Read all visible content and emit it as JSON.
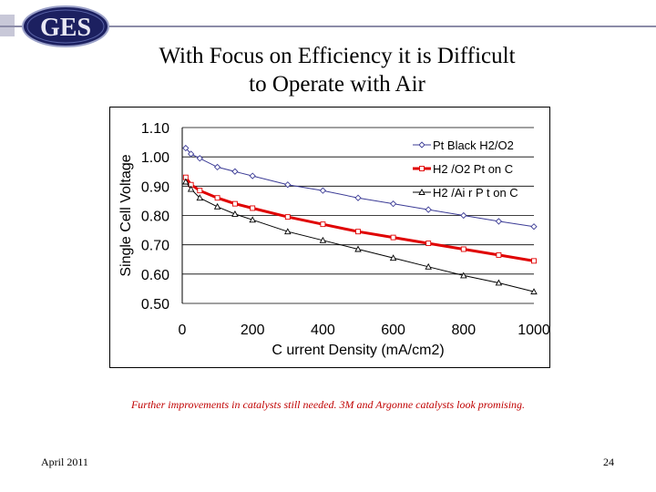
{
  "logo_text": "GES",
  "slide": {
    "title_line1": "With Focus on Efficiency it is Difficult",
    "title_line2": "to Operate with Air",
    "note": "Further improvements in catalysts still needed.  3M and Argonne catalysts look promising.",
    "date": "April 2011",
    "page": "24"
  },
  "colors": {
    "black": "#000000",
    "red": "#e00000",
    "navy": "#3c3c96",
    "note": "#c00000"
  },
  "chart_data": {
    "type": "line",
    "xlabel": "C urrent Density (mA/cm2)",
    "ylabel": "Single Cell Voltage",
    "xlim": [
      0,
      1000
    ],
    "ylim": [
      0.5,
      1.1
    ],
    "xticks": [
      0,
      200,
      400,
      600,
      800,
      1000
    ],
    "xtick_labels": [
      "0",
      "200",
      "400",
      "600",
      "800",
      "1000"
    ],
    "yticks": [
      0.5,
      0.6,
      0.7,
      0.8,
      0.9,
      1.0,
      1.1
    ],
    "ytick_labels": [
      "0.50",
      "0.60",
      "0.70",
      "0.80",
      "0.90",
      "1.00",
      "1.10"
    ],
    "grid": "horizontal",
    "legend_position": "top-right",
    "series": [
      {
        "name": "Pt  Black H2/O2",
        "color": "#3c3c96",
        "marker": "diamond",
        "x": [
          10,
          25,
          50,
          100,
          150,
          200,
          300,
          400,
          500,
          600,
          700,
          800,
          900,
          1000
        ],
        "y": [
          1.03,
          1.01,
          0.995,
          0.965,
          0.95,
          0.935,
          0.905,
          0.885,
          0.86,
          0.84,
          0.82,
          0.8,
          0.78,
          0.762
        ]
      },
      {
        "name": "H2 /O2  Pt  on C",
        "color": "#e00000",
        "marker": "square",
        "x": [
          10,
          25,
          50,
          100,
          150,
          200,
          300,
          400,
          500,
          600,
          700,
          800,
          900,
          1000
        ],
        "y": [
          0.93,
          0.905,
          0.885,
          0.86,
          0.84,
          0.825,
          0.795,
          0.77,
          0.745,
          0.725,
          0.705,
          0.685,
          0.665,
          0.645
        ]
      },
      {
        "name": "H2 /Ai r P t on C",
        "color": "#000000",
        "marker": "triangle",
        "x": [
          10,
          25,
          50,
          100,
          150,
          200,
          300,
          400,
          500,
          600,
          700,
          800,
          900,
          1000
        ],
        "y": [
          0.915,
          0.89,
          0.86,
          0.83,
          0.805,
          0.785,
          0.745,
          0.715,
          0.685,
          0.655,
          0.625,
          0.595,
          0.57,
          0.54
        ]
      }
    ]
  }
}
